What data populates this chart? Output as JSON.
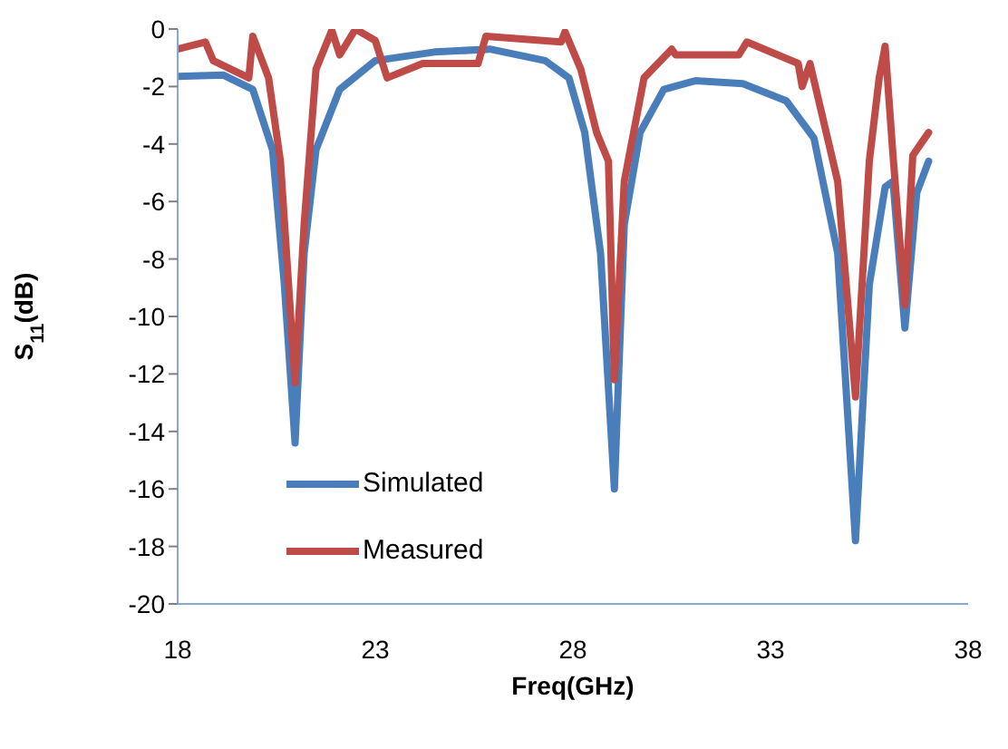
{
  "chart_data": {
    "type": "line",
    "xlabel": "Freq(GHz)",
    "ylabel": "S$_{11}$(dB)",
    "xlim": [
      18,
      38
    ],
    "xticks": [
      18,
      23,
      28,
      33,
      38
    ],
    "ylim": [
      -20,
      0
    ],
    "yticks": [
      -20,
      -18,
      -16,
      -14,
      -12,
      -10,
      -8,
      -6,
      -4,
      -2,
      0
    ],
    "grid": false,
    "legend": "bottom left",
    "marker": "none",
    "line_style": "solid",
    "series": [
      {
        "name": "Simulated",
        "color": "#4a7ebb",
        "x": [
          18,
          19.15,
          19.9,
          20.4,
          20.7,
          20.97,
          21.2,
          21.5,
          22.1,
          23,
          24.5,
          25.9,
          27.3,
          27.9,
          28.3,
          28.7,
          29.05,
          29.3,
          29.7,
          30.3,
          31.1,
          32.3,
          33.4,
          34.1,
          34.7,
          35.15,
          35.5,
          35.9,
          36.1,
          36.4,
          36.7,
          37
        ],
        "values": [
          -1.65,
          -1.6,
          -2.1,
          -4.2,
          -8.9,
          -14.4,
          -7.8,
          -4.2,
          -2.1,
          -1.1,
          -0.8,
          -0.7,
          -1.1,
          -1.7,
          -3.6,
          -7.8,
          -16,
          -6.8,
          -3.6,
          -2.1,
          -1.8,
          -1.9,
          -2.5,
          -3.8,
          -7.8,
          -17.8,
          -8.9,
          -5.5,
          -5.3,
          -10.4,
          -5.7,
          -4.6
        ]
      },
      {
        "name": "Measured",
        "color": "#be4b48",
        "x": [
          18,
          18.7,
          18.9,
          19.8,
          19.9,
          20.3,
          20.6,
          20.97,
          21.2,
          21.5,
          21.9,
          22.1,
          22.5,
          23,
          23.3,
          24.2,
          25.6,
          25.8,
          27.7,
          27.8,
          28.2,
          28.6,
          28.9,
          29.05,
          29.3,
          29.8,
          30.5,
          30.6,
          32.2,
          32.4,
          33.7,
          33.8,
          34,
          34.7,
          35.15,
          35.5,
          35.75,
          35.9,
          36.1,
          36.4,
          36.6,
          37
        ],
        "values": [
          -0.7,
          -0.45,
          -1.1,
          -1.7,
          -0.25,
          -1.7,
          -4.6,
          -12.3,
          -6.8,
          -1.4,
          -0.05,
          -0.9,
          0,
          -0.4,
          -1.7,
          -1.2,
          -1.2,
          -0.25,
          -0.45,
          -0.1,
          -1.4,
          -3.6,
          -4.6,
          -12.2,
          -5.3,
          -1.7,
          -0.7,
          -0.9,
          -0.9,
          -0.45,
          -1.2,
          -2,
          -1.2,
          -5.3,
          -12.8,
          -4.6,
          -1.7,
          -0.6,
          -4.4,
          -9.6,
          -4.4,
          -3.6
        ]
      }
    ]
  }
}
